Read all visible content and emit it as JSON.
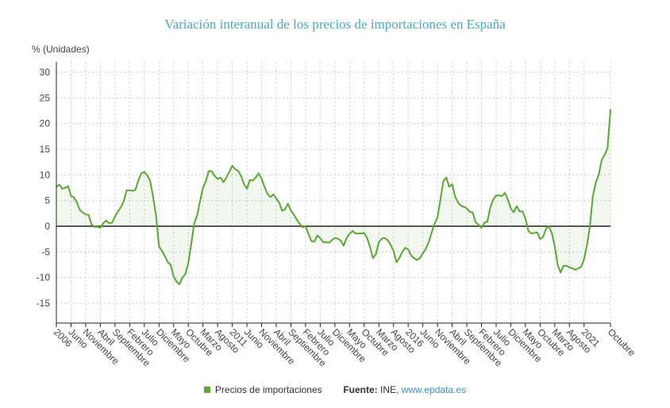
{
  "chart_data": {
    "type": "area",
    "title": "Variación interanual de los precios de importaciones en España",
    "ylabel": "% (Unidades)",
    "xlabel": "",
    "ylim": [
      -18.85,
      32
    ],
    "yticks": [
      30,
      25,
      20,
      15,
      10,
      5,
      0,
      -5,
      -10,
      -15
    ],
    "x_start": "Enero 2006",
    "x_end": "Octubre 2021",
    "x_tick_every_months": 5,
    "xtick_labels": [
      "2006",
      "Junio",
      "Noviembre",
      "Abril",
      "Septiembre",
      "Febrero",
      "Julio",
      "Diciembre",
      "Mayo",
      "Octubre",
      "Marzo",
      "Agosto",
      "2011",
      "Junio",
      "Noviembre",
      "Abril",
      "Septiembre",
      "Febrero",
      "Julio",
      "Diciembre",
      "Mayo",
      "Octubre",
      "Marzo",
      "Agosto",
      "2016",
      "Junio",
      "Noviembre",
      "Abril",
      "Septiembre",
      "Febrero",
      "Julio",
      "Diciembre",
      "Mayo",
      "Octubre",
      "Marzo",
      "Agosto",
      "2021"
    ],
    "last_xtick_label": "Octubre",
    "grid": true,
    "legend_position": "bottom",
    "series": [
      {
        "name": "Precios de importaciones",
        "color": "#5aa832",
        "values": [
          7.7,
          8.1,
          7.3,
          7.5,
          7.8,
          5.9,
          5.6,
          4.6,
          3.2,
          2.7,
          2.3,
          2.2,
          0.4,
          -0.1,
          -0.1,
          -0.3,
          0.6,
          1.1,
          0.6,
          0.7,
          1.9,
          2.9,
          3.7,
          4.9,
          7.0,
          7.0,
          6.9,
          7.1,
          9.0,
          10.3,
          10.6,
          9.9,
          8.8,
          5.7,
          2.1,
          -3.9,
          -4.8,
          -5.8,
          -7.0,
          -7.5,
          -9.8,
          -10.8,
          -11.3,
          -10.0,
          -9.3,
          -7.2,
          -3.5,
          0.5,
          2.1,
          4.9,
          7.5,
          8.8,
          10.8,
          10.7,
          9.8,
          9.2,
          9.5,
          8.6,
          9.5,
          10.6,
          11.8,
          11.1,
          10.8,
          9.8,
          8.2,
          7.3,
          9.0,
          8.9,
          9.5,
          10.3,
          9.3,
          7.7,
          6.3,
          5.7,
          6.2,
          5.4,
          4.6,
          3.0,
          3.3,
          4.4,
          3.1,
          2.3,
          1.3,
          0.5,
          -0.2,
          0.0,
          -1.5,
          -2.9,
          -3.0,
          -1.8,
          -2.3,
          -3.1,
          -3.1,
          -3.2,
          -2.7,
          -2.3,
          -2.4,
          -2.8,
          -3.8,
          -2.3,
          -1.5,
          -0.9,
          -1.4,
          -1.4,
          -1.4,
          -1.3,
          -2.3,
          -4.1,
          -6.2,
          -5.4,
          -3.1,
          -2.4,
          -2.3,
          -2.7,
          -3.6,
          -4.8,
          -7.0,
          -6.2,
          -5.0,
          -4.2,
          -4.5,
          -5.7,
          -6.2,
          -6.6,
          -6.2,
          -5.3,
          -4.4,
          -3.1,
          -1.3,
          0.5,
          1.7,
          5.2,
          8.8,
          9.5,
          7.7,
          8.2,
          5.8,
          4.6,
          4.0,
          3.8,
          3.5,
          2.8,
          2.7,
          0.8,
          0.3,
          -0.3,
          0.7,
          0.9,
          3.6,
          5.2,
          6.0,
          6.0,
          5.9,
          6.5,
          5.2,
          3.5,
          2.7,
          3.9,
          2.9,
          2.9,
          1.5,
          -0.9,
          -1.4,
          -1.3,
          -1.2,
          -2.5,
          -2.1,
          -0.5,
          0.0,
          -1.3,
          -3.9,
          -7.5,
          -9.0,
          -7.7,
          -7.7,
          -8.0,
          -8.2,
          -8.5,
          -8.2,
          -7.9,
          -6.4,
          -3.6,
          0.0,
          5.9,
          8.5,
          10.0,
          12.9,
          13.9,
          15.2,
          22.7
        ]
      }
    ]
  },
  "legend": {
    "series_label": "Precios de importaciones",
    "source_label": "Fuente:",
    "source_value": "INE, ",
    "source_link": "www.epdata.es"
  }
}
